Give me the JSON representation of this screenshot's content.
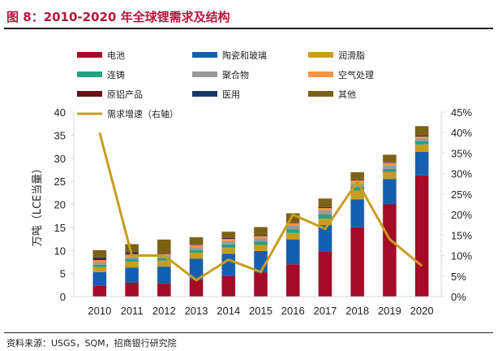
{
  "header": {
    "title": "图 8：2010-2020 年全球锂需求及结构"
  },
  "footer": {
    "source": "资料来源：USGS，SQM，招商银行研究院"
  },
  "chart_data": {
    "type": "bar",
    "stacked": true,
    "title": "图 8：2010-2020 年全球锂需求及结构",
    "xlabel": "",
    "ylabel": "万吨（LCE当量）",
    "y2label": "",
    "ylim": [
      0,
      40
    ],
    "y2lim": [
      0,
      0.45
    ],
    "yticks": [
      "0",
      "5",
      "10",
      "15",
      "20",
      "25",
      "30",
      "35",
      "40"
    ],
    "y2ticks": [
      "0%",
      "5%",
      "10%",
      "15%",
      "20%",
      "25%",
      "30%",
      "35%",
      "40%",
      "45%"
    ],
    "categories": [
      "2010",
      "2011",
      "2012",
      "2013",
      "2014",
      "2015",
      "2016",
      "2017",
      "2018",
      "2019",
      "2020"
    ],
    "legend_position": "top",
    "series": [
      {
        "name": "电池",
        "color": "#a50a26",
        "values": [
          2.3,
          3.0,
          2.8,
          3.6,
          4.4,
          5.2,
          7.0,
          9.7,
          15.0,
          20.0,
          26.3
        ]
      },
      {
        "name": "陶瓷和玻璃",
        "color": "#1360b0",
        "values": [
          3.0,
          3.3,
          3.7,
          4.6,
          4.9,
          4.7,
          5.4,
          5.8,
          6.1,
          5.5,
          5.1
        ]
      },
      {
        "name": "润滑脂",
        "color": "#c79d1d",
        "values": [
          1.1,
          1.3,
          1.3,
          1.3,
          1.3,
          1.3,
          1.4,
          1.4,
          1.9,
          1.5,
          1.6
        ]
      },
      {
        "name": "连铸",
        "color": "#23a085",
        "values": [
          0.5,
          0.5,
          0.5,
          0.6,
          0.7,
          0.7,
          0.8,
          0.9,
          0.8,
          0.7,
          0.7
        ]
      },
      {
        "name": "聚合物",
        "color": "#9a9a9a",
        "values": [
          0.5,
          0.5,
          0.5,
          0.6,
          0.7,
          0.7,
          0.8,
          0.9,
          0.8,
          0.8,
          0.6
        ]
      },
      {
        "name": "空气处理",
        "color": "#f29446",
        "values": [
          0.5,
          0.5,
          0.4,
          0.5,
          0.5,
          0.5,
          0.5,
          0.5,
          0.6,
          0.5,
          0.4
        ]
      },
      {
        "name": "原铝产品",
        "color": "#6b0d1a",
        "values": [
          0.3,
          0.2,
          0.1,
          0.1,
          0.1,
          0.1,
          0.1,
          0.1,
          0.1,
          0.1,
          0.1
        ]
      },
      {
        "name": "医用",
        "color": "#16376a",
        "values": [
          0.3,
          0.3,
          0.1,
          0.1,
          0.1,
          0.1,
          0.1,
          0.1,
          0.1,
          0.1,
          0.1
        ]
      },
      {
        "name": "其他",
        "color": "#7a6114",
        "values": [
          1.6,
          1.8,
          3.0,
          1.5,
          1.4,
          1.8,
          2.0,
          1.9,
          1.6,
          1.6,
          2.1
        ]
      }
    ],
    "line_series": {
      "name": "需求增速（右轴）",
      "color": "#c79d1d",
      "axis": "right",
      "values": [
        0.4,
        0.1,
        0.1,
        0.04,
        0.09,
        0.06,
        0.2,
        0.165,
        0.28,
        0.14,
        0.075
      ]
    },
    "grid": false
  }
}
